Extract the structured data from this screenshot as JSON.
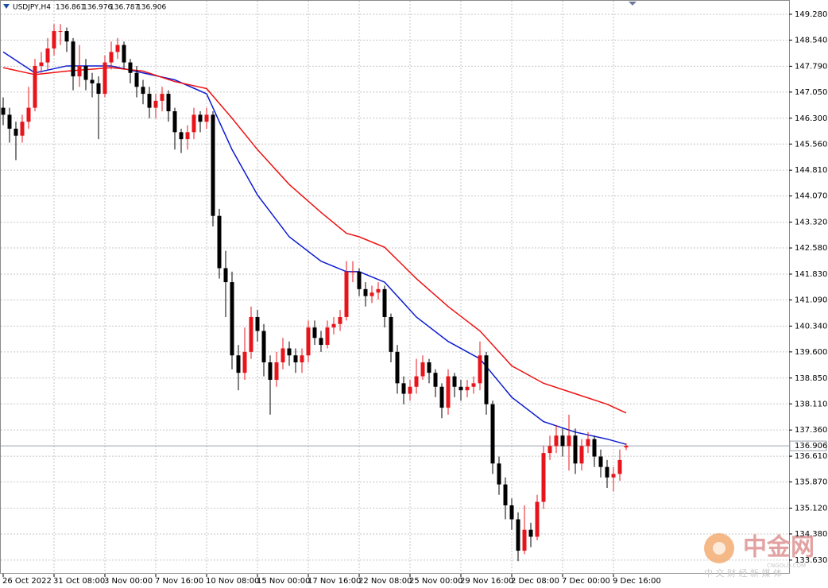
{
  "chart_data": {
    "type": "candlestick",
    "symbol": "USDJPY,H4",
    "header_open": 136.861,
    "header_high": 136.976,
    "header_low": 136.787,
    "header_close": 136.906,
    "current_price": 136.906,
    "up_color": "#e8141b",
    "down_color": "#000000",
    "grid": true,
    "ylim": [
      133.24,
      149.69
    ],
    "yticks": [
      {
        "value": 149.28,
        "label": "149.280"
      },
      {
        "value": 148.54,
        "label": "148.540"
      },
      {
        "value": 147.79,
        "label": "147.790"
      },
      {
        "value": 147.05,
        "label": "147.050"
      },
      {
        "value": 146.3,
        "label": "146.300"
      },
      {
        "value": 145.56,
        "label": "145.560"
      },
      {
        "value": 144.81,
        "label": "144.810"
      },
      {
        "value": 144.07,
        "label": "144.070"
      },
      {
        "value": 143.32,
        "label": "143.320"
      },
      {
        "value": 142.58,
        "label": "142.580"
      },
      {
        "value": 141.83,
        "label": "141.830"
      },
      {
        "value": 141.09,
        "label": "141.090"
      },
      {
        "value": 140.34,
        "label": "140.340"
      },
      {
        "value": 139.6,
        "label": "139.600"
      },
      {
        "value": 138.85,
        "label": "138.850"
      },
      {
        "value": 138.11,
        "label": "138.110"
      },
      {
        "value": 137.36,
        "label": "137.360"
      },
      {
        "value": 136.61,
        "label": "136.610"
      },
      {
        "value": 135.87,
        "label": "135.870"
      },
      {
        "value": 135.12,
        "label": "135.120"
      },
      {
        "value": 134.38,
        "label": "134.380"
      },
      {
        "value": 133.63,
        "label": "133.630"
      }
    ],
    "xticks": [
      {
        "value": 0,
        "label": "26 Oct 2022"
      },
      {
        "value": 8,
        "label": "31 Oct 08:00"
      },
      {
        "value": 16,
        "label": "3 Nov 00:00"
      },
      {
        "value": 24,
        "label": "7 Nov 16:00"
      },
      {
        "value": 32,
        "label": "10 Nov 08:00"
      },
      {
        "value": 40,
        "label": "15 Nov 00:00"
      },
      {
        "value": 48,
        "label": "17 Nov 16:00"
      },
      {
        "value": 56,
        "label": "22 Nov 08:00"
      },
      {
        "value": 64,
        "label": "25 Nov 00:00"
      },
      {
        "value": 72,
        "label": "29 Nov 16:00"
      },
      {
        "value": 80,
        "label": "2 Dec 08:00"
      },
      {
        "value": 88,
        "label": "7 Dec 00:00"
      },
      {
        "value": 96,
        "label": "9 Dec 16:00"
      }
    ],
    "open": [
      146.6,
      146.4,
      146.0,
      145.8,
      146.2,
      146.6,
      147.8,
      147.9,
      148.3,
      148.8,
      148.8,
      148.5,
      147.5,
      147.8,
      147.4,
      147.3,
      147.0,
      147.9,
      148.2,
      148.4,
      147.9,
      147.6,
      147.2,
      147.0,
      146.6,
      146.8,
      147.0,
      146.5,
      145.9,
      145.7,
      145.9,
      146.4,
      146.2,
      146.4,
      143.5,
      142.0,
      141.6,
      139.5,
      139.0,
      139.6,
      140.6,
      140.2,
      139.3,
      138.8,
      139.3,
      139.7,
      139.5,
      139.3,
      139.5,
      140.3,
      140.0,
      139.8,
      140.3,
      140.4,
      140.6,
      141.9,
      141.9,
      141.4,
      141.2,
      141.3,
      141.4,
      140.6,
      139.6,
      138.7,
      138.4,
      138.6,
      138.9,
      139.3,
      139.0,
      138.6,
      138.0,
      138.9,
      138.6,
      138.5,
      138.6,
      138.7,
      139.5,
      138.1,
      136.4,
      135.8,
      135.2,
      134.8,
      133.9,
      134.5,
      134.3,
      135.3,
      136.7,
      136.9,
      137.2,
      136.9,
      137.2,
      136.4,
      136.9,
      137.1,
      136.6,
      136.3,
      136.0,
      136.1,
      136.861
    ],
    "high": [
      146.9,
      146.6,
      146.2,
      146.4,
      147.2,
      148.0,
      148.2,
      148.6,
      149.0,
      149.0,
      148.9,
      148.6,
      148.4,
      148.0,
      147.6,
      147.5,
      148.1,
      148.5,
      148.6,
      148.5,
      148.0,
      147.8,
      147.4,
      147.2,
      147.0,
      147.2,
      147.1,
      146.6,
      146.0,
      146.1,
      146.6,
      146.5,
      146.6,
      146.5,
      143.7,
      142.5,
      141.9,
      139.8,
      140.3,
      140.9,
      140.8,
      140.4,
      139.5,
      139.6,
      140.0,
      139.9,
      139.7,
      139.7,
      140.5,
      140.5,
      140.2,
      140.5,
      140.6,
      140.8,
      142.2,
      142.2,
      142.0,
      141.6,
      141.5,
      141.6,
      141.5,
      140.7,
      139.8,
      138.9,
      138.8,
      139.4,
      139.5,
      139.4,
      139.1,
      138.7,
      139.1,
      139.0,
      138.8,
      138.8,
      138.9,
      139.9,
      139.6,
      138.2,
      136.6,
      136.0,
      135.4,
      135.0,
      135.2,
      134.7,
      135.5,
      136.9,
      137.2,
      137.5,
      137.4,
      137.8,
      137.4,
      137.1,
      137.3,
      137.2,
      136.8,
      136.5,
      136.3,
      136.8,
      136.976
    ],
    "low": [
      146.1,
      145.6,
      145.1,
      145.6,
      146.0,
      146.5,
      147.6,
      147.7,
      148.1,
      148.4,
      148.2,
      147.1,
      147.2,
      147.1,
      146.9,
      145.7,
      146.9,
      147.7,
      148.0,
      147.7,
      147.3,
      146.9,
      146.7,
      146.3,
      146.3,
      146.5,
      146.2,
      145.4,
      145.3,
      145.4,
      145.7,
      145.9,
      146.0,
      143.2,
      141.7,
      140.6,
      139.1,
      138.5,
      138.8,
      139.4,
      139.9,
      138.9,
      137.8,
      138.6,
      139.1,
      139.2,
      139.0,
      139.0,
      139.3,
      139.8,
      139.6,
      139.7,
      140.1,
      140.2,
      140.5,
      141.6,
      141.2,
      140.9,
      141.0,
      141.1,
      140.3,
      139.3,
      138.4,
      138.1,
      138.2,
      138.4,
      138.8,
      138.7,
      138.3,
      137.7,
      137.8,
      138.3,
      138.2,
      138.3,
      138.4,
      138.5,
      137.8,
      136.1,
      135.5,
      134.8,
      134.5,
      133.6,
      133.8,
      134.0,
      134.2,
      135.1,
      136.5,
      136.7,
      136.6,
      136.2,
      136.1,
      136.2,
      136.7,
      136.3,
      136.0,
      135.7,
      135.6,
      135.9,
      136.787
    ],
    "close": [
      146.4,
      146.0,
      145.8,
      146.2,
      146.6,
      147.8,
      147.9,
      148.3,
      148.8,
      148.8,
      148.5,
      147.5,
      147.8,
      147.4,
      147.3,
      147.0,
      147.9,
      148.2,
      148.4,
      147.9,
      147.6,
      147.2,
      147.0,
      146.6,
      146.8,
      147.0,
      146.5,
      145.9,
      145.7,
      145.9,
      146.4,
      146.2,
      146.4,
      143.5,
      142.0,
      141.6,
      139.5,
      139.0,
      139.6,
      140.6,
      140.2,
      139.3,
      138.8,
      139.3,
      139.7,
      139.5,
      139.3,
      139.5,
      140.3,
      140.0,
      139.8,
      140.3,
      140.4,
      140.6,
      141.9,
      141.9,
      141.4,
      141.2,
      141.3,
      141.4,
      140.6,
      139.6,
      138.7,
      138.4,
      138.6,
      138.9,
      139.3,
      139.0,
      138.6,
      138.0,
      138.9,
      138.6,
      138.5,
      138.6,
      138.7,
      139.5,
      138.1,
      136.4,
      135.8,
      135.2,
      134.8,
      133.9,
      134.5,
      134.3,
      135.3,
      136.7,
      136.9,
      137.2,
      136.9,
      137.2,
      136.4,
      136.9,
      137.1,
      136.6,
      136.3,
      136.0,
      136.1,
      136.5,
      136.906
    ],
    "series": [
      {
        "color": "#0b1bd0",
        "x": [
          0,
          5,
          10,
          17,
          22,
          27,
          32,
          36,
          40,
          45,
          50,
          54,
          56,
          60,
          65,
          70,
          75,
          80,
          85,
          90,
          95,
          98
        ],
        "values": [
          148.2,
          147.6,
          147.8,
          147.8,
          147.6,
          147.4,
          147.0,
          145.4,
          144.1,
          142.9,
          142.2,
          141.9,
          141.9,
          141.6,
          140.6,
          139.9,
          139.4,
          138.3,
          137.6,
          137.3,
          137.1,
          136.95
        ]
      },
      {
        "color": "#ee1111",
        "x": [
          0,
          5,
          10,
          17,
          22,
          27,
          32,
          36,
          40,
          45,
          50,
          54,
          56,
          60,
          65,
          70,
          75,
          80,
          85,
          90,
          95,
          98
        ],
        "values": [
          147.75,
          147.55,
          147.65,
          147.75,
          147.65,
          147.35,
          147.15,
          146.3,
          145.4,
          144.4,
          143.6,
          143.0,
          142.9,
          142.6,
          141.7,
          140.9,
          140.2,
          139.2,
          138.7,
          138.4,
          138.1,
          137.85
        ]
      }
    ]
  },
  "watermark": {
    "brand": "中金网",
    "site": "CNGOLD.COM",
    "tagline": "中 文 财 经 新 媒 体"
  }
}
